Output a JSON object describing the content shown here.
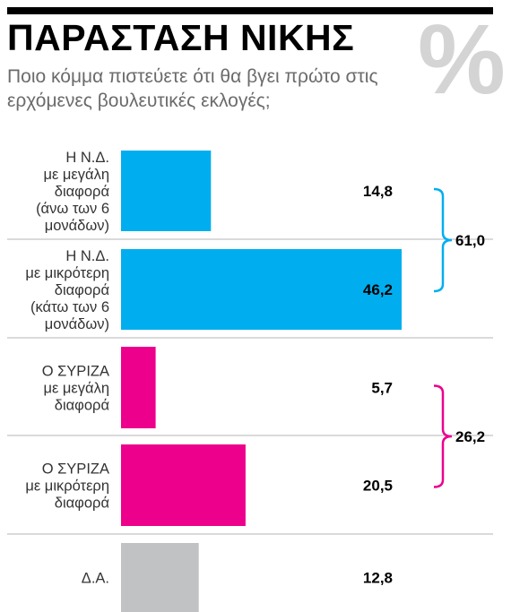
{
  "header": {
    "title": "ΠΑΡΑΣΤΑΣΗ ΝΙΚΗΣ",
    "subtitle": "Ποιο κόμμα πιστεύετε ότι θα βγει πρώτο στις ερχόμενες βουλευτικές εκλογές;",
    "symbol": "%"
  },
  "chart_data": {
    "type": "bar",
    "orientation": "horizontal",
    "title": "ΠΑΡΑΣΤΑΣΗ ΝΙΚΗΣ",
    "subtitle": "Ποιο κόμμα πιστεύετε ότι θα βγει πρώτο στις ερχόμενες βουλευτικές εκλογές;",
    "unit": "%",
    "xlim": [
      0,
      50
    ],
    "grid": false,
    "categories": [
      [
        "Η Ν.Δ.",
        "με μεγάλη",
        "διαφορά",
        "(άνω των 6",
        "μονάδων)"
      ],
      [
        "Η Ν.Δ.",
        "με μικρότερη",
        "διαφορά",
        "(κάτω των 6",
        "μονάδων)"
      ],
      [
        "Ο ΣΥΡΙΖΑ",
        "με μεγάλη",
        "διαφορά"
      ],
      [
        "Ο ΣΥΡΙΖΑ",
        "με μικρότερη",
        "διαφορά"
      ],
      [
        "Δ.Α."
      ]
    ],
    "values": [
      14.8,
      46.2,
      5.7,
      20.5,
      12.8
    ],
    "value_labels": [
      "14,8",
      "46,2",
      "5,7",
      "20,5",
      "12,8"
    ],
    "bar_colors": [
      "#00aeef",
      "#00aeef",
      "#ec008c",
      "#ec008c",
      "#c0c2c4"
    ],
    "groups": [
      {
        "rows": [
          0,
          1
        ],
        "total": 61.0,
        "total_label": "61,0",
        "color": "#00aeef"
      },
      {
        "rows": [
          2,
          3
        ],
        "total": 26.2,
        "total_label": "26,2",
        "color": "#ec008c"
      }
    ]
  }
}
